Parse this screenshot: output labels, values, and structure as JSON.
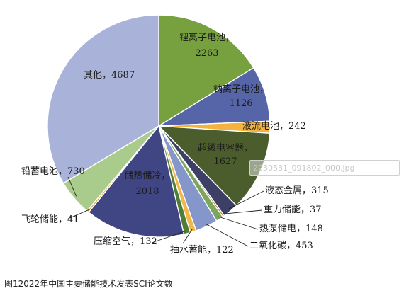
{
  "chart_data": {
    "type": "pie",
    "caption": "图12022年中国主要储能技术发表SCI论文数",
    "slices": [
      {
        "label": "锂离子电池",
        "value": 2263,
        "color": "#77a13f"
      },
      {
        "label": "钠离子电池",
        "value": 1126,
        "color": "#5665a8"
      },
      {
        "label": "液流电池",
        "value": 242,
        "color": "#f3b33d"
      },
      {
        "label": "超级电容器",
        "value": 1627,
        "color": "#4c5d2d"
      },
      {
        "label": "液态金属",
        "value": 315,
        "color": "#3d3f66"
      },
      {
        "label": "重力储能",
        "value": 37,
        "color": "#a87a2a"
      },
      {
        "label": "热泵储电",
        "value": 148,
        "color": "#7ea55e"
      },
      {
        "label": "二氧化碳",
        "value": 453,
        "color": "#8596cb"
      },
      {
        "label": "抽水蓄能",
        "value": 122,
        "color": "#f1b749"
      },
      {
        "label": "压缩空气",
        "value": 132,
        "color": "#4f7d39"
      },
      {
        "label": "储热储冷",
        "value": 2018,
        "color": "#3f4683"
      },
      {
        "label": "飞轮储能",
        "value": 41,
        "color": "#d8a33b"
      },
      {
        "label": "铅蓄电池",
        "value": 730,
        "color": "#a9cc8c"
      },
      {
        "label": "其他",
        "value": 4687,
        "color": "#a9b3d9"
      }
    ]
  },
  "watermark_text": "2230531_091802_000.jpg"
}
